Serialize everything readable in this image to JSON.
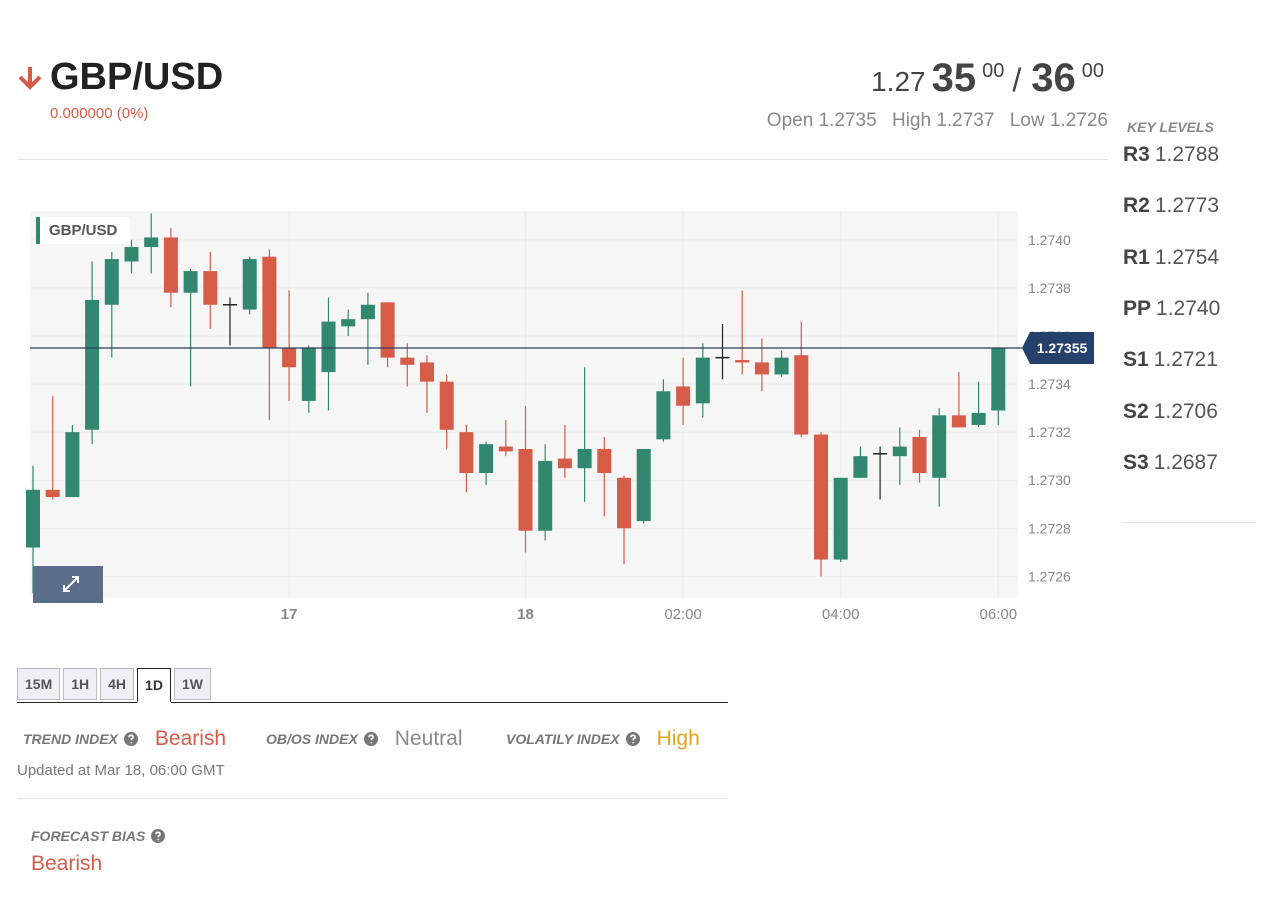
{
  "header": {
    "symbol": "GBP/USD",
    "change": "0.000000 (0%)"
  },
  "quote": {
    "prefix": "1.27",
    "bid_big": "35",
    "bid_small": "00",
    "separator": "/",
    "ask_big": "36",
    "ask_small": "00"
  },
  "stats": [
    {
      "label": "Open",
      "value": "1.2735"
    },
    {
      "label": "High",
      "value": "1.2737"
    },
    {
      "label": "Low",
      "value": "1.2726"
    }
  ],
  "key_levels": {
    "title": "KEY LEVELS",
    "levels": [
      {
        "name": "R3",
        "value": "1.2788"
      },
      {
        "name": "R2",
        "value": "1.2773"
      },
      {
        "name": "R1",
        "value": "1.2754"
      },
      {
        "name": "PP",
        "value": "1.2740"
      },
      {
        "name": "S1",
        "value": "1.2721"
      },
      {
        "name": "S2",
        "value": "1.2706"
      },
      {
        "name": "S3",
        "value": "1.2687"
      }
    ]
  },
  "chart_data": {
    "type": "candlestick",
    "name": "GBP/USD",
    "categories": [
      null,
      null,
      null,
      null,
      null,
      null,
      null,
      null,
      null,
      null,
      null,
      null,
      null,
      "17",
      null,
      null,
      null,
      null,
      null,
      null,
      null,
      null,
      null,
      null,
      null,
      "18",
      null,
      null,
      null,
      null,
      null,
      null,
      null,
      "02:00",
      null,
      null,
      null,
      null,
      null,
      null,
      null,
      "04:00",
      null,
      null,
      null,
      null,
      null,
      null,
      null,
      "06:00"
    ],
    "open": [
      1.27272,
      1.27296,
      1.27293,
      1.27321,
      1.27373,
      1.27391,
      1.27397,
      1.27401,
      1.27378,
      1.27387,
      1.27373,
      1.27371,
      1.27393,
      1.27355,
      1.27333,
      1.27345,
      1.27364,
      1.27367,
      1.27374,
      1.27351,
      1.27349,
      1.27341,
      1.2732,
      1.27303,
      1.27314,
      1.27313,
      1.27279,
      1.27309,
      1.27305,
      1.27313,
      1.27301,
      1.27283,
      1.27317,
      1.27339,
      1.27332,
      1.27351,
      1.2735,
      1.27349,
      1.27344,
      1.27352,
      1.27319,
      1.27267,
      1.27301,
      1.27311,
      1.2731,
      1.27318,
      1.27301,
      1.27327,
      1.27323,
      1.27329
    ],
    "high": [
      1.27306,
      1.27335,
      1.27323,
      1.27391,
      1.27395,
      1.274,
      1.27411,
      1.27405,
      1.27388,
      1.27395,
      1.27376,
      1.27393,
      1.27396,
      1.27379,
      1.27356,
      1.27376,
      1.27371,
      1.27378,
      1.27374,
      1.27357,
      1.27352,
      1.27344,
      1.27323,
      1.27316,
      1.27325,
      1.27331,
      1.27315,
      1.27323,
      1.27347,
      1.27318,
      1.27302,
      1.27313,
      1.27342,
      1.27351,
      1.27357,
      1.27365,
      1.27379,
      1.27359,
      1.27354,
      1.27366,
      1.2732,
      1.27301,
      1.27314,
      1.27314,
      1.27322,
      1.27321,
      1.2733,
      1.27345,
      1.27341,
      1.27355
    ],
    "low": [
      1.27253,
      1.27292,
      1.27293,
      1.27315,
      1.27351,
      1.27386,
      1.27386,
      1.27372,
      1.27339,
      1.27363,
      1.27356,
      1.27369,
      1.27325,
      1.27333,
      1.27328,
      1.27329,
      1.2736,
      1.27348,
      1.27347,
      1.27339,
      1.27328,
      1.27313,
      1.27295,
      1.27298,
      1.2731,
      1.2727,
      1.27275,
      1.27301,
      1.27291,
      1.27285,
      1.27265,
      1.27282,
      1.27316,
      1.27323,
      1.27326,
      1.27342,
      1.27344,
      1.27337,
      1.27343,
      1.27318,
      1.2726,
      1.27266,
      1.27301,
      1.27292,
      1.27298,
      1.27299,
      1.27289,
      1.27322,
      1.27322,
      1.27323
    ],
    "close": [
      1.27296,
      1.27293,
      1.2732,
      1.27375,
      1.27392,
      1.27397,
      1.27401,
      1.27378,
      1.27387,
      1.27373,
      1.27373,
      1.27392,
      1.27355,
      1.27347,
      1.27355,
      1.27366,
      1.27367,
      1.27373,
      1.27351,
      1.27348,
      1.27341,
      1.27321,
      1.27303,
      1.27315,
      1.27312,
      1.27279,
      1.27308,
      1.27305,
      1.27313,
      1.27303,
      1.2728,
      1.27313,
      1.27337,
      1.27331,
      1.27351,
      1.27351,
      1.27349,
      1.27344,
      1.27351,
      1.27319,
      1.27267,
      1.27301,
      1.2731,
      1.27311,
      1.27314,
      1.27303,
      1.27327,
      1.27322,
      1.27328,
      1.27355
    ],
    "up_color": "#32876f",
    "down_color": "#d65c47",
    "doji_color": "#222222",
    "last_price": 1.27355,
    "ylim": [
      1.27251,
      1.27412
    ],
    "yticks": [
      1.2726,
      1.2728,
      {
        "value": 1.273,
        "label": "1.2730"
      },
      1.2732,
      1.2734,
      1.2736,
      1.2738,
      {
        "value": 1.274,
        "label": "1.2740"
      }
    ],
    "grid": true
  },
  "timeframes": {
    "items": [
      "15M",
      "1H",
      "4H",
      "1D",
      "1W"
    ],
    "active": 3
  },
  "indices": [
    {
      "label": "TREND INDEX",
      "value": "Bearish",
      "color": "#d65c47"
    },
    {
      "label": "OB/OS INDEX",
      "value": "Neutral",
      "color": "#8a8a8a"
    },
    {
      "label": "VOLATILY INDEX",
      "value": "High",
      "color": "#e8a317"
    }
  ],
  "updated": "Updated at Mar 18, 06:00 GMT",
  "forecast": {
    "label": "FORECAST BIAS",
    "value": "Bearish",
    "color": "#d65c47"
  }
}
